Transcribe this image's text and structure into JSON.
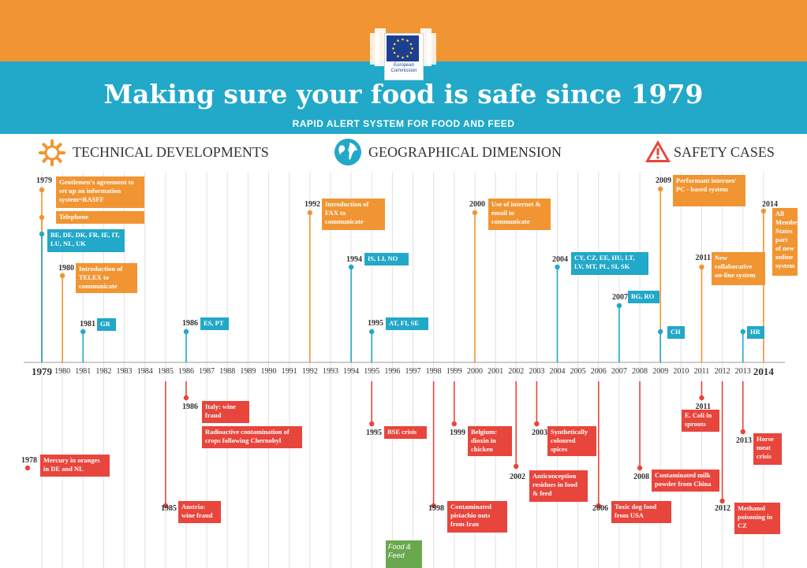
{
  "header": {
    "logo_text_line1": "European",
    "logo_text_line2": "Commission",
    "title": "Making sure your food is safe since 1979",
    "subtitle": "RAPID ALERT SYSTEM FOR FOOD AND FEED"
  },
  "sections": {
    "technical": "TECHNICAL DEVELOPMENTS",
    "geographical": "GEOGRAPHICAL DIMENSION",
    "safety": "SAFETY CASES"
  },
  "colors": {
    "orange": "#f19532",
    "blue": "#22a8c8",
    "red": "#e8453c",
    "green": "#6aa84f"
  },
  "icons": {
    "technical": "gear-icon",
    "geographical": "globe-icon",
    "safety": "warning-triangle-icon"
  },
  "years": [
    "1979",
    "1980",
    "1981",
    "1982",
    "1983",
    "1984",
    "1985",
    "1986",
    "1987",
    "1988",
    "1989",
    "1990",
    "1991",
    "1992",
    "1993",
    "1994",
    "1995",
    "1996",
    "1997",
    "1998",
    "1999",
    "2000",
    "2001",
    "2002",
    "2003",
    "2004",
    "2005",
    "2006",
    "2007",
    "2008",
    "2009",
    "2010",
    "2011",
    "2012",
    "2013",
    "2014"
  ],
  "events": {
    "tech_1979_label": "1979",
    "tech_1979_rasff": "Gentlemen's agreement to set up an information system=RASFF",
    "tech_1979_tel": "Telephone",
    "geo_1979": "BE, DE, DK, FR, IE, IT, LU, NL, UK",
    "tech_1980_label": "1980",
    "tech_1980": "Introduction of TELEX to communicate",
    "geo_1981_label": "1981",
    "geo_1981": "GR",
    "geo_1986_label": "1986",
    "geo_1986": "ES, PT",
    "tech_1992_label": "1992",
    "tech_1992": "Introduction of FAX to communicate",
    "geo_1994_label": "1994",
    "geo_1994": "IS, LI, NO",
    "geo_1995_label": "1995",
    "geo_1995": "AT, FI, SE",
    "tech_2000_label": "2000",
    "tech_2000": "Use of internet & email to communicate",
    "geo_2004_label": "2004",
    "geo_2004": "CY, CZ, EE, HU, LT, LV, MT, PL, SI, SK",
    "geo_2007_label": "2007",
    "geo_2007": "BG, RO",
    "tech_2009_label": "2009",
    "tech_2009": "Performant internet/ PC - based system",
    "geo_2009": "CH",
    "tech_2011_label": "2011",
    "tech_2011": "New collaborative on-line system",
    "geo_2013": "HR",
    "tech_2014_label": "2014",
    "tech_2014": "All Member States part of new online system",
    "safe_1978_label": "1978",
    "safe_1978": "Mercury in oranges in DE and NL",
    "safe_1985_label": "1985",
    "safe_1985": "Austria: wine fraud",
    "safe_1986_label": "1986",
    "safe_1986_italy": "Italy: wine fraud",
    "safe_1986_cher": "Radioactive contamination of crops following Chernobyl",
    "safe_1995_label": "1995",
    "safe_1995": "BSE crisis",
    "safe_1998_label": "1998",
    "safe_1998": "Contaminated pistachio nuts from Iran",
    "safe_1999_label": "1999",
    "safe_1999": "Belgium: dioxin in chicken",
    "safe_2002_label": "2002",
    "safe_2002": "Anticonception residues in food & feed",
    "safe_2003_label": "2003",
    "safe_2003": "Synthetically coloured spices",
    "safe_2006_label": "2006",
    "safe_2006": "Toxic dog food from USA",
    "safe_2008_label": "2008",
    "safe_2008": "Contaminated milk powder from China",
    "safe_2011_label": "2011",
    "safe_2011": "E. Coli in sprouts",
    "safe_2012_label": "2012",
    "safe_2012": "Methanol poisoning in CZ",
    "safe_2013_label": "2013",
    "safe_2013": "Horse meat crisis"
  },
  "footer": {
    "tag": "Food & Feed"
  }
}
